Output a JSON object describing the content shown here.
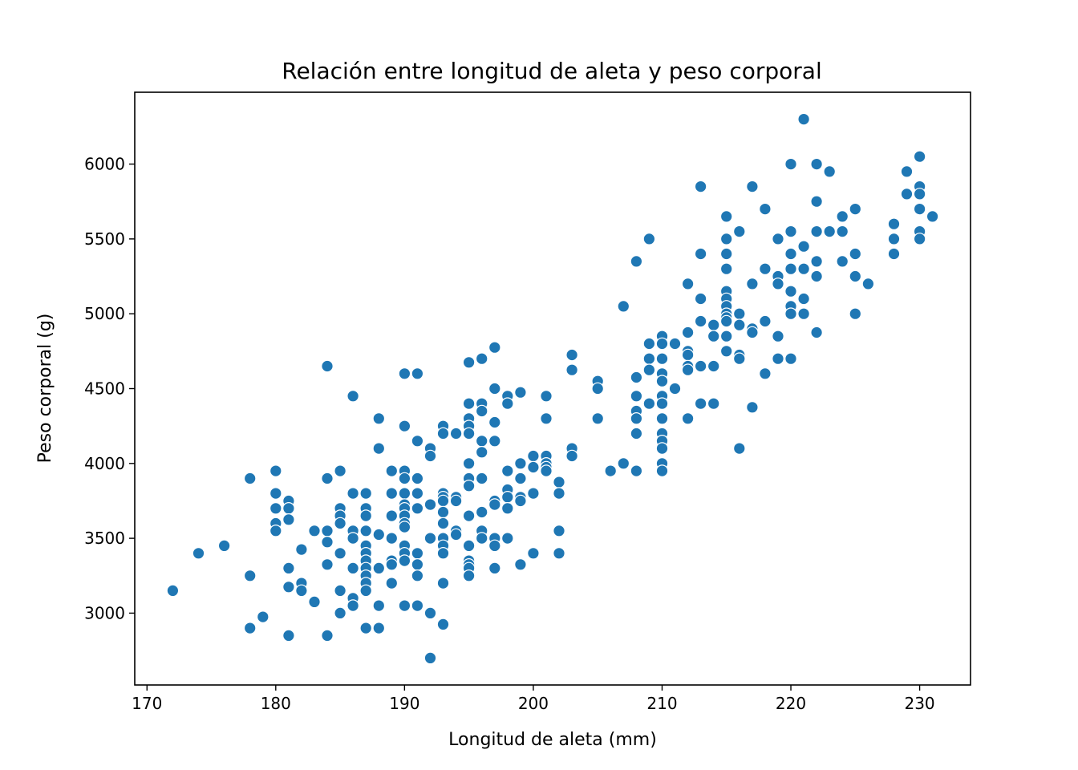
{
  "chart_data": {
    "type": "scatter",
    "title": "Relación entre longitud de aleta y peso corporal",
    "xlabel": "Longitud de aleta (mm)",
    "ylabel": "Peso corporal (g)",
    "xlim": [
      169.05,
      233.95
    ],
    "ylim": [
      2520,
      6480
    ],
    "xticks": [
      170,
      180,
      190,
      200,
      210,
      220,
      230
    ],
    "yticks": [
      3000,
      3500,
      4000,
      4500,
      5000,
      5500,
      6000
    ],
    "grid": false,
    "marker_color": "#1f77b4",
    "marker_edge_color": "#ffffff",
    "points": [
      [
        172,
        3150
      ],
      [
        174,
        3400
      ],
      [
        176,
        3450
      ],
      [
        178,
        3900
      ],
      [
        178,
        3250
      ],
      [
        178,
        2900
      ],
      [
        179,
        2975
      ],
      [
        180,
        3950
      ],
      [
        180,
        3800
      ],
      [
        180,
        3700
      ],
      [
        180,
        3600
      ],
      [
        180,
        3550
      ],
      [
        181,
        3750
      ],
      [
        181,
        3700
      ],
      [
        181,
        3625
      ],
      [
        181,
        3300
      ],
      [
        181,
        3175
      ],
      [
        181,
        2850
      ],
      [
        182,
        3425
      ],
      [
        182,
        3200
      ],
      [
        182,
        3150
      ],
      [
        183,
        3550
      ],
      [
        183,
        3075
      ],
      [
        184,
        4650
      ],
      [
        184,
        3900
      ],
      [
        184,
        3550
      ],
      [
        184,
        3475
      ],
      [
        184,
        3325
      ],
      [
        184,
        2850
      ],
      [
        185,
        3950
      ],
      [
        185,
        3700
      ],
      [
        185,
        3650
      ],
      [
        185,
        3600
      ],
      [
        185,
        3400
      ],
      [
        185,
        3150
      ],
      [
        185,
        3000
      ],
      [
        186,
        4450
      ],
      [
        186,
        3800
      ],
      [
        186,
        3550
      ],
      [
        186,
        3500
      ],
      [
        186,
        3300
      ],
      [
        186,
        3100
      ],
      [
        186,
        3050
      ],
      [
        187,
        3800
      ],
      [
        187,
        3700
      ],
      [
        187,
        3650
      ],
      [
        187,
        3550
      ],
      [
        187,
        3450
      ],
      [
        187,
        3400
      ],
      [
        187,
        3350
      ],
      [
        187,
        3300
      ],
      [
        187,
        3250
      ],
      [
        187,
        3200
      ],
      [
        187,
        3150
      ],
      [
        187,
        2900
      ],
      [
        188,
        4300
      ],
      [
        188,
        4100
      ],
      [
        188,
        3525
      ],
      [
        188,
        3300
      ],
      [
        188,
        3050
      ],
      [
        188,
        2900
      ],
      [
        189,
        3950
      ],
      [
        189,
        3800
      ],
      [
        189,
        3650
      ],
      [
        189,
        3500
      ],
      [
        189,
        3350
      ],
      [
        189,
        3325
      ],
      [
        189,
        3200
      ],
      [
        190,
        4600
      ],
      [
        190,
        4250
      ],
      [
        190,
        3950
      ],
      [
        190,
        3900
      ],
      [
        190,
        3800
      ],
      [
        190,
        3725
      ],
      [
        190,
        3700
      ],
      [
        190,
        3650
      ],
      [
        190,
        3600
      ],
      [
        190,
        3575
      ],
      [
        190,
        3450
      ],
      [
        190,
        3400
      ],
      [
        190,
        3350
      ],
      [
        190,
        3050
      ],
      [
        191,
        4600
      ],
      [
        191,
        4150
      ],
      [
        191,
        3900
      ],
      [
        191,
        3800
      ],
      [
        191,
        3700
      ],
      [
        191,
        3400
      ],
      [
        191,
        3325
      ],
      [
        191,
        3250
      ],
      [
        191,
        3050
      ],
      [
        192,
        4100
      ],
      [
        192,
        4050
      ],
      [
        192,
        3725
      ],
      [
        192,
        3500
      ],
      [
        192,
        3000
      ],
      [
        192,
        2700
      ],
      [
        193,
        4250
      ],
      [
        193,
        4200
      ],
      [
        193,
        3800
      ],
      [
        193,
        3775
      ],
      [
        193,
        3750
      ],
      [
        193,
        3675
      ],
      [
        193,
        3600
      ],
      [
        193,
        3500
      ],
      [
        193,
        3450
      ],
      [
        193,
        3400
      ],
      [
        193,
        3200
      ],
      [
        193,
        2925
      ],
      [
        194,
        4200
      ],
      [
        194,
        3775
      ],
      [
        194,
        3750
      ],
      [
        194,
        3550
      ],
      [
        194,
        3525
      ],
      [
        195,
        4675
      ],
      [
        195,
        4400
      ],
      [
        195,
        4300
      ],
      [
        195,
        4250
      ],
      [
        195,
        4200
      ],
      [
        195,
        4000
      ],
      [
        195,
        3900
      ],
      [
        195,
        3850
      ],
      [
        195,
        3650
      ],
      [
        195,
        3450
      ],
      [
        195,
        3350
      ],
      [
        195,
        3325
      ],
      [
        195,
        3300
      ],
      [
        195,
        3250
      ],
      [
        196,
        4700
      ],
      [
        196,
        4400
      ],
      [
        196,
        4350
      ],
      [
        196,
        4150
      ],
      [
        196,
        4075
      ],
      [
        196,
        3900
      ],
      [
        196,
        3675
      ],
      [
        196,
        3550
      ],
      [
        196,
        3500
      ],
      [
        197,
        4775
      ],
      [
        197,
        4500
      ],
      [
        197,
        4275
      ],
      [
        197,
        4150
      ],
      [
        197,
        3750
      ],
      [
        197,
        3725
      ],
      [
        197,
        3500
      ],
      [
        197,
        3450
      ],
      [
        197,
        3300
      ],
      [
        198,
        4450
      ],
      [
        198,
        4400
      ],
      [
        198,
        3950
      ],
      [
        198,
        3825
      ],
      [
        198,
        3775
      ],
      [
        198,
        3700
      ],
      [
        198,
        3500
      ],
      [
        199,
        4475
      ],
      [
        199,
        4000
      ],
      [
        199,
        3900
      ],
      [
        199,
        3775
      ],
      [
        199,
        3750
      ],
      [
        199,
        3325
      ],
      [
        200,
        4050
      ],
      [
        200,
        3975
      ],
      [
        200,
        3800
      ],
      [
        200,
        3400
      ],
      [
        201,
        4450
      ],
      [
        201,
        4300
      ],
      [
        201,
        4050
      ],
      [
        201,
        4000
      ],
      [
        201,
        3975
      ],
      [
        201,
        3950
      ],
      [
        202,
        3875
      ],
      [
        202,
        3800
      ],
      [
        202,
        3550
      ],
      [
        202,
        3400
      ],
      [
        203,
        4725
      ],
      [
        203,
        4625
      ],
      [
        203,
        4100
      ],
      [
        203,
        4050
      ],
      [
        205,
        4550
      ],
      [
        205,
        4500
      ],
      [
        205,
        4300
      ],
      [
        206,
        3950
      ],
      [
        207,
        5050
      ],
      [
        207,
        4000
      ],
      [
        208,
        5350
      ],
      [
        208,
        4575
      ],
      [
        208,
        4450
      ],
      [
        208,
        4350
      ],
      [
        208,
        4300
      ],
      [
        208,
        4200
      ],
      [
        208,
        3950
      ],
      [
        209,
        5500
      ],
      [
        209,
        4800
      ],
      [
        209,
        4700
      ],
      [
        209,
        4625
      ],
      [
        209,
        4400
      ],
      [
        210,
        4850
      ],
      [
        210,
        4800
      ],
      [
        210,
        4700
      ],
      [
        210,
        4600
      ],
      [
        210,
        4550
      ],
      [
        210,
        4450
      ],
      [
        210,
        4400
      ],
      [
        210,
        4300
      ],
      [
        210,
        4200
      ],
      [
        210,
        4150
      ],
      [
        210,
        4100
      ],
      [
        210,
        4000
      ],
      [
        210,
        3950
      ],
      [
        211,
        4800
      ],
      [
        211,
        4500
      ],
      [
        212,
        5200
      ],
      [
        212,
        4875
      ],
      [
        212,
        4750
      ],
      [
        212,
        4725
      ],
      [
        212,
        4650
      ],
      [
        212,
        4625
      ],
      [
        212,
        4300
      ],
      [
        213,
        5850
      ],
      [
        213,
        5400
      ],
      [
        213,
        5100
      ],
      [
        213,
        4950
      ],
      [
        213,
        4650
      ],
      [
        213,
        4400
      ],
      [
        214,
        4925
      ],
      [
        214,
        4850
      ],
      [
        214,
        4650
      ],
      [
        214,
        4400
      ],
      [
        215,
        5650
      ],
      [
        215,
        5500
      ],
      [
        215,
        5400
      ],
      [
        215,
        5300
      ],
      [
        215,
        5150
      ],
      [
        215,
        5100
      ],
      [
        215,
        5050
      ],
      [
        215,
        5000
      ],
      [
        215,
        4975
      ],
      [
        215,
        4950
      ],
      [
        215,
        4850
      ],
      [
        215,
        4750
      ],
      [
        216,
        5550
      ],
      [
        216,
        5000
      ],
      [
        216,
        4925
      ],
      [
        216,
        4725
      ],
      [
        216,
        4700
      ],
      [
        216,
        4100
      ],
      [
        217,
        5850
      ],
      [
        217,
        5200
      ],
      [
        217,
        4900
      ],
      [
        217,
        4875
      ],
      [
        217,
        4375
      ],
      [
        218,
        5700
      ],
      [
        218,
        5300
      ],
      [
        218,
        4950
      ],
      [
        218,
        4600
      ],
      [
        219,
        5500
      ],
      [
        219,
        5250
      ],
      [
        219,
        5200
      ],
      [
        219,
        4850
      ],
      [
        219,
        4700
      ],
      [
        220,
        6000
      ],
      [
        220,
        5550
      ],
      [
        220,
        5400
      ],
      [
        220,
        5300
      ],
      [
        220,
        5150
      ],
      [
        220,
        5050
      ],
      [
        220,
        5000
      ],
      [
        220,
        4700
      ],
      [
        221,
        6300
      ],
      [
        221,
        5450
      ],
      [
        221,
        5300
      ],
      [
        221,
        5100
      ],
      [
        221,
        5000
      ],
      [
        222,
        6000
      ],
      [
        222,
        5750
      ],
      [
        222,
        5550
      ],
      [
        222,
        5350
      ],
      [
        222,
        5250
      ],
      [
        222,
        4875
      ],
      [
        223,
        5950
      ],
      [
        223,
        5550
      ],
      [
        224,
        5650
      ],
      [
        224,
        5350
      ],
      [
        224,
        5550
      ],
      [
        225,
        5700
      ],
      [
        225,
        5400
      ],
      [
        225,
        5250
      ],
      [
        225,
        5000
      ],
      [
        226,
        5200
      ],
      [
        228,
        5600
      ],
      [
        228,
        5500
      ],
      [
        228,
        5400
      ],
      [
        229,
        5950
      ],
      [
        229,
        5800
      ],
      [
        230,
        6050
      ],
      [
        230,
        5850
      ],
      [
        230,
        5800
      ],
      [
        230,
        5700
      ],
      [
        230,
        5550
      ],
      [
        230,
        5500
      ],
      [
        231,
        5650
      ]
    ]
  }
}
